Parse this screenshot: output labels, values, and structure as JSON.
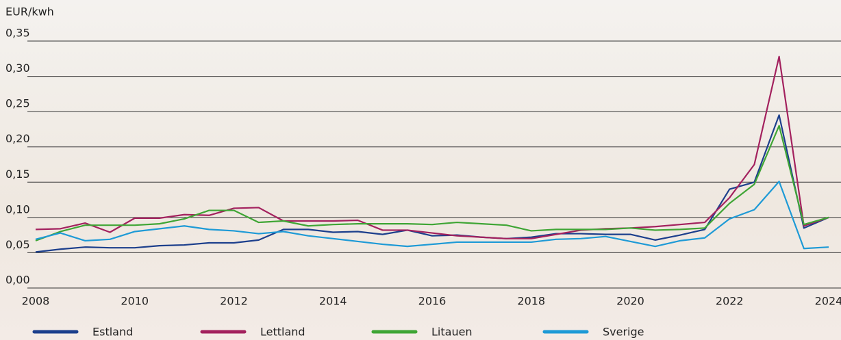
{
  "chart_data": {
    "type": "line",
    "y_axis_label": "EUR/kwh",
    "x": [
      2008,
      2008.5,
      2009,
      2009.5,
      2010,
      2010.5,
      2011,
      2011.5,
      2012,
      2012.5,
      2013,
      2013.5,
      2014,
      2014.5,
      2015,
      2015.5,
      2016,
      2016.5,
      2017,
      2017.5,
      2018,
      2018.5,
      2019,
      2019.5,
      2020,
      2020.5,
      2021,
      2021.5,
      2022,
      2022.5,
      2023,
      2023.5,
      2024
    ],
    "xlim": [
      2008,
      2024
    ],
    "xticks": [
      2008,
      2010,
      2012,
      2014,
      2016,
      2018,
      2020,
      2022,
      2024
    ],
    "ylim": [
      0,
      0.35
    ],
    "yticks": [
      {
        "value": 0,
        "label": "0,00"
      },
      {
        "value": 0.05,
        "label": "0,05"
      },
      {
        "value": 0.1,
        "label": "0,10"
      },
      {
        "value": 0.15,
        "label": "0,15"
      },
      {
        "value": 0.2,
        "label": "0,20"
      },
      {
        "value": 0.25,
        "label": "0,25"
      },
      {
        "value": 0.3,
        "label": "0,30"
      },
      {
        "value": 0.35,
        "label": "0,35"
      }
    ],
    "grid": true,
    "legend": "bottom",
    "series": [
      {
        "name": "Estland",
        "color": "#1c3f8c",
        "values": [
          0.051,
          0.055,
          0.058,
          0.057,
          0.057,
          0.06,
          0.061,
          0.064,
          0.064,
          0.068,
          0.083,
          0.083,
          0.079,
          0.08,
          0.076,
          0.082,
          0.074,
          0.075,
          0.072,
          0.07,
          0.072,
          0.077,
          0.077,
          0.076,
          0.076,
          0.068,
          0.075,
          0.083,
          0.14,
          0.15,
          0.245,
          0.085,
          0.1
        ]
      },
      {
        "name": "Lettland",
        "color": "#a3215e",
        "values": [
          0.083,
          0.084,
          0.092,
          0.079,
          0.099,
          0.099,
          0.104,
          0.103,
          0.113,
          0.114,
          0.095,
          0.095,
          0.095,
          0.096,
          0.082,
          0.082,
          0.078,
          0.074,
          0.072,
          0.07,
          0.07,
          0.076,
          0.082,
          0.084,
          0.085,
          0.087,
          0.09,
          0.093,
          0.128,
          0.175,
          0.328,
          0.088,
          0.1
        ]
      },
      {
        "name": "Litauen",
        "color": "#3fa535",
        "values": [
          0.067,
          0.08,
          0.089,
          0.089,
          0.089,
          0.091,
          0.098,
          0.11,
          0.11,
          0.093,
          0.095,
          0.088,
          0.09,
          0.091,
          0.091,
          0.091,
          0.09,
          0.093,
          0.091,
          0.089,
          0.081,
          0.083,
          0.083,
          0.083,
          0.085,
          0.082,
          0.083,
          0.085,
          0.12,
          0.147,
          0.23,
          0.09,
          0.1
        ]
      },
      {
        "name": "Sverige",
        "color": "#1e9ad6",
        "values": [
          0.069,
          0.078,
          0.067,
          0.069,
          0.08,
          0.084,
          0.088,
          0.083,
          0.081,
          0.077,
          0.08,
          0.074,
          0.07,
          0.066,
          0.062,
          0.059,
          0.062,
          0.065,
          0.065,
          0.065,
          0.065,
          0.069,
          0.07,
          0.073,
          0.066,
          0.059,
          0.067,
          0.071,
          0.098,
          0.111,
          0.151,
          0.056,
          0.058
        ]
      }
    ]
  }
}
